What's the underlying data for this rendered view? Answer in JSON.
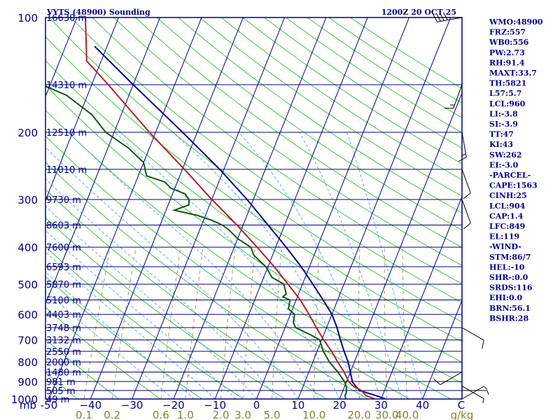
{
  "colors": {
    "frame": "#00008b",
    "isobar": "#00008b",
    "isotherm": "#00008b",
    "dry_adiabat": "#33cc33",
    "moist_adiabat": "#55aaff",
    "mixing_ratio": "#a89a5a",
    "temperature": "#b22222",
    "dewpoint": "#0b5a0b",
    "parcel": "#00008b",
    "wind_barb": "#000000",
    "wlabel": "#8b7e2a"
  },
  "chart_data": {
    "type": "skew-t",
    "title": "VYTS (48900) Sounding",
    "time": "1200Z 20 OCT 25",
    "pressure_axis": {
      "range_mb": [
        1000,
        100
      ],
      "labels": [
        {
          "p": 100,
          "text": "100"
        },
        {
          "p": 200,
          "text": "200"
        },
        {
          "p": 300,
          "text": "300"
        },
        {
          "p": 400,
          "text": "400"
        },
        {
          "p": 500,
          "text": "500"
        },
        {
          "p": 600,
          "text": "600"
        },
        {
          "p": 700,
          "text": "700"
        },
        {
          "p": 800,
          "text": "800"
        },
        {
          "p": 900,
          "text": "900"
        },
        {
          "p": 1000,
          "text": "1000"
        }
      ],
      "unit_label": "mb"
    },
    "temperature_axis": {
      "range_c": [
        -50,
        50
      ],
      "labels": [
        {
          "t": -50,
          "text": "-50"
        },
        {
          "t": -40,
          "text": "−40"
        },
        {
          "t": -30,
          "text": "−30"
        },
        {
          "t": -20,
          "text": "−20"
        },
        {
          "t": -10,
          "text": "−10"
        },
        {
          "t": 0,
          "text": "0"
        },
        {
          "t": 10,
          "text": "10"
        },
        {
          "t": 20,
          "text": "20"
        },
        {
          "t": 30,
          "text": "30"
        },
        {
          "t": 40,
          "text": "40"
        }
      ],
      "unit_label": "C"
    },
    "mixing_ratio_labels": {
      "values": [
        {
          "w": 0.1,
          "text": "0.1"
        },
        {
          "w": 0.2,
          "text": "0.2"
        },
        {
          "w": 0.6,
          "text": "0.6"
        },
        {
          "w": 1.0,
          "text": "1.0"
        },
        {
          "w": 2.0,
          "text": "2.0"
        },
        {
          "w": 3.0,
          "text": "3.0"
        },
        {
          "w": 5.0,
          "text": "5.0"
        },
        {
          "w": 10.0,
          "text": "10.0"
        },
        {
          "w": 20.0,
          "text": "20.0"
        },
        {
          "w": 30.0,
          "text": "30.0"
        },
        {
          "w": 40.0,
          "text": "40.0"
        }
      ],
      "unit_label": "g/kg"
    },
    "heights": [
      {
        "p": 100,
        "text": "16630 m"
      },
      {
        "p": 150,
        "text": "14310 m"
      },
      {
        "p": 200,
        "text": "12510 m"
      },
      {
        "p": 250,
        "text": "11010 m"
      },
      {
        "p": 300,
        "text": "9730 m"
      },
      {
        "p": 350,
        "text": "8603 m"
      },
      {
        "p": 400,
        "text": "7600 m"
      },
      {
        "p": 450,
        "text": "6593 m"
      },
      {
        "p": 500,
        "text": "5870 m"
      },
      {
        "p": 550,
        "text": "5100 m"
      },
      {
        "p": 600,
        "text": "4403 m"
      },
      {
        "p": 650,
        "text": "3748 m"
      },
      {
        "p": 700,
        "text": "3132 m"
      },
      {
        "p": 750,
        "text": "2550 m"
      },
      {
        "p": 800,
        "text": "2000 m"
      },
      {
        "p": 850,
        "text": "1480 m"
      },
      {
        "p": 900,
        "text": "981 m"
      },
      {
        "p": 950,
        "text": "505 m"
      },
      {
        "p": 1000,
        "text": "49 m"
      }
    ],
    "temperature_profile": [
      [
        999,
        28.5
      ],
      [
        980,
        26.0
      ],
      [
        950,
        24.5
      ],
      [
        925,
        22.0
      ],
      [
        900,
        20.5
      ],
      [
        850,
        18.5
      ],
      [
        800,
        16.0
      ],
      [
        750,
        13.5
      ],
      [
        700,
        10.5
      ],
      [
        650,
        7.5
      ],
      [
        600,
        4.5
      ],
      [
        550,
        1.0
      ],
      [
        500,
        -3.5
      ],
      [
        450,
        -8.5
      ],
      [
        400,
        -14.5
      ],
      [
        350,
        -21.5
      ],
      [
        300,
        -30.0
      ],
      [
        250,
        -39.5
      ],
      [
        200,
        -51.5
      ],
      [
        150,
        -66.0
      ],
      [
        130,
        -73.5
      ],
      [
        100,
        -78.0
      ]
    ],
    "dewpoint_profile": [
      [
        999,
        21.5
      ],
      [
        980,
        21.0
      ],
      [
        960,
        21.0
      ],
      [
        930,
        20.5
      ],
      [
        900,
        19.5
      ],
      [
        880,
        18.5
      ],
      [
        850,
        17.0
      ],
      [
        800,
        14.0
      ],
      [
        750,
        11.5
      ],
      [
        700,
        9.5
      ],
      [
        680,
        7.0
      ],
      [
        650,
        2.5
      ],
      [
        630,
        1.5
      ],
      [
        600,
        1.0
      ],
      [
        580,
        -1.0
      ],
      [
        550,
        -1.5
      ],
      [
        540,
        -3.5
      ],
      [
        530,
        -3.0
      ],
      [
        500,
        -4.5
      ],
      [
        480,
        -8.0
      ],
      [
        450,
        -10.5
      ],
      [
        420,
        -14.5
      ],
      [
        400,
        -16.0
      ],
      [
        380,
        -20.0
      ],
      [
        360,
        -23.0
      ],
      [
        350,
        -25.0
      ],
      [
        340,
        -28.0
      ],
      [
        330,
        -32.0
      ],
      [
        320,
        -38.0
      ],
      [
        310,
        -35.0
      ],
      [
        300,
        -35.5
      ],
      [
        290,
        -37.0
      ],
      [
        280,
        -41.0
      ],
      [
        270,
        -43.0
      ],
      [
        260,
        -48.0
      ],
      [
        240,
        -50.0
      ],
      [
        220,
        -55.0
      ],
      [
        200,
        -62.0
      ],
      [
        180,
        -67.0
      ],
      [
        160,
        -75.0
      ],
      [
        150,
        -82.0
      ],
      [
        130,
        -89.0
      ],
      [
        120,
        -92.0
      ],
      [
        100,
        -100.0
      ]
    ],
    "parcel_profile": [
      [
        999,
        31.0
      ],
      [
        980,
        28.5
      ],
      [
        950,
        24.0
      ],
      [
        904,
        21.5
      ],
      [
        850,
        20.0
      ],
      [
        800,
        18.5
      ],
      [
        750,
        16.5
      ],
      [
        700,
        14.5
      ],
      [
        650,
        12.5
      ],
      [
        600,
        10.0
      ],
      [
        550,
        6.5
      ],
      [
        500,
        2.5
      ],
      [
        450,
        -2.0
      ],
      [
        400,
        -7.5
      ],
      [
        350,
        -14.0
      ],
      [
        300,
        -21.5
      ],
      [
        250,
        -31.0
      ],
      [
        200,
        -43.5
      ],
      [
        150,
        -60.0
      ],
      [
        119,
        -73.0
      ]
    ],
    "wind_barbs": [
      {
        "p": 1000,
        "dir": 60,
        "kt": 5
      },
      {
        "p": 950,
        "dir": 90,
        "kt": 5
      },
      {
        "p": 925,
        "dir": 120,
        "kt": 5
      },
      {
        "p": 850,
        "dir": 240,
        "kt": 10
      },
      {
        "p": 650,
        "dir": 120,
        "kt": 10
      },
      {
        "p": 300,
        "dir": 160,
        "kt": 10
      },
      {
        "p": 250,
        "dir": 160,
        "kt": 10
      },
      {
        "p": 200,
        "dir": 170,
        "kt": 15
      },
      {
        "p": 150,
        "dir": 200,
        "kt": 15
      },
      {
        "p": 100,
        "dir": 260,
        "kt": 40
      }
    ],
    "indices": [
      "WMO:48900",
      "FRZ:557",
      "WB0:556",
      "PW:2.73",
      "RH:91.4",
      "MAXT:33.7",
      "TH:5821",
      "L57:5.7",
      "LCL:960",
      "LI:-3.8",
      "SI:-3.9",
      "TT:47",
      "KI:43",
      "SW:262",
      "EI:-3.0",
      "-PARCEL-",
      "CAPE:1563",
      "CINH:25",
      "LCL:904",
      "CAP:1.4",
      "LFC:849",
      "EL:119",
      "-WIND-",
      "STM:86/7",
      "HEL:-10",
      "SHR-:0.0",
      "SRDS:116",
      "EHI:0.0",
      "BRN:56.1",
      "BSHR:28"
    ]
  }
}
